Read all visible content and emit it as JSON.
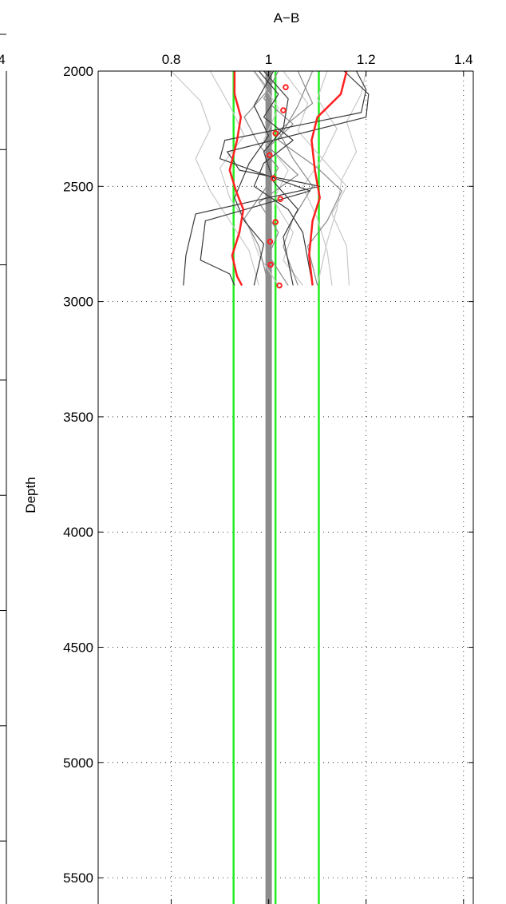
{
  "chart_data": {
    "type": "line",
    "title": "A−B",
    "xlabel": "",
    "ylabel": "Depth",
    "xlim": [
      0.65,
      1.42
    ],
    "ylim": [
      2000,
      5600
    ],
    "y_reversed": true,
    "x_axis_position": "top",
    "grid": true,
    "grid_style": "dotted",
    "x_ticks": [
      0.8,
      1,
      1.2,
      1.4
    ],
    "x_tick_labels": [
      "0.8",
      "1",
      "1.2",
      "1.4"
    ],
    "y_ticks": [
      2000,
      2500,
      3000,
      3500,
      4000,
      4500,
      5000,
      5500
    ],
    "y_tick_labels": [
      "2000",
      "2500",
      "3000",
      "3500",
      "4000",
      "4500",
      "5000",
      "5500"
    ],
    "left_partial_panel_label": "4",
    "colors": {
      "red": "#ff2020",
      "green": "#22ee22",
      "gray_reference": "#8c8c8c",
      "dark_lines": "#3a3a3a",
      "mid_lines": "#8a8a8a",
      "light_lines": "#c8c8c8",
      "marker": "#ee0000"
    },
    "vertical_lines": [
      {
        "x": 0.928,
        "color": "green"
      },
      {
        "x": 1.014,
        "color": "green"
      },
      {
        "x": 1.103,
        "color": "green"
      },
      {
        "x": 1.0,
        "color": "gray_reference",
        "thick": true
      }
    ],
    "markers": {
      "color": "red",
      "points": [
        {
          "x": 1.035,
          "y": 2070
        },
        {
          "x": 1.03,
          "y": 2170
        },
        {
          "x": 1.014,
          "y": 2270
        },
        {
          "x": 1.002,
          "y": 2365
        },
        {
          "x": 1.01,
          "y": 2465
        },
        {
          "x": 1.024,
          "y": 2555
        },
        {
          "x": 1.014,
          "y": 2655
        },
        {
          "x": 1.003,
          "y": 2740
        },
        {
          "x": 1.004,
          "y": 2840
        },
        {
          "x": 1.022,
          "y": 2930
        }
      ]
    },
    "series": [
      {
        "color": "red",
        "width": 2.5,
        "points": [
          [
            0.93,
            2000
          ],
          [
            0.93,
            2100
          ],
          [
            0.943,
            2200
          ],
          [
            0.935,
            2300
          ],
          [
            0.92,
            2430
          ],
          [
            0.933,
            2520
          ],
          [
            0.948,
            2600
          ],
          [
            0.94,
            2700
          ],
          [
            0.925,
            2800
          ],
          [
            0.935,
            2890
          ],
          [
            0.945,
            2930
          ]
        ]
      },
      {
        "color": "red",
        "width": 2.5,
        "points": [
          [
            1.16,
            2000
          ],
          [
            1.148,
            2100
          ],
          [
            1.1,
            2200
          ],
          [
            1.088,
            2300
          ],
          [
            1.095,
            2430
          ],
          [
            1.105,
            2550
          ],
          [
            1.09,
            2650
          ],
          [
            1.083,
            2800
          ],
          [
            1.09,
            2930
          ]
        ]
      },
      {
        "color": "dark_lines",
        "width": 1.2,
        "points": [
          [
            1.155,
            2000
          ],
          [
            1.205,
            2100
          ],
          [
            1.2,
            2200
          ],
          [
            0.915,
            2350
          ],
          [
            0.94,
            2430
          ],
          [
            1.105,
            2500
          ],
          [
            0.85,
            2620
          ],
          [
            0.83,
            2800
          ],
          [
            0.825,
            2930
          ]
        ]
      },
      {
        "color": "dark_lines",
        "width": 1.2,
        "points": [
          [
            1.18,
            2000
          ],
          [
            1.2,
            2080
          ],
          [
            1.19,
            2180
          ],
          [
            0.91,
            2300
          ],
          [
            0.9,
            2380
          ],
          [
            1.085,
            2520
          ],
          [
            0.87,
            2650
          ],
          [
            0.86,
            2820
          ],
          [
            0.92,
            2880
          ],
          [
            0.93,
            2930
          ]
        ]
      },
      {
        "color": "dark_lines",
        "width": 1.2,
        "points": [
          [
            0.98,
            2000
          ],
          [
            1.02,
            2100
          ],
          [
            0.99,
            2200
          ],
          [
            1.05,
            2300
          ],
          [
            0.99,
            2400
          ],
          [
            0.97,
            2500
          ],
          [
            1.04,
            2600
          ],
          [
            1.07,
            2700
          ],
          [
            1.09,
            2930
          ]
        ]
      },
      {
        "color": "dark_lines",
        "width": 1.2,
        "points": [
          [
            1.01,
            2000
          ],
          [
            0.97,
            2150
          ],
          [
            1.0,
            2280
          ],
          [
            0.96,
            2400
          ],
          [
            0.93,
            2550
          ],
          [
            0.95,
            2650
          ],
          [
            0.99,
            2750
          ],
          [
            0.97,
            2930
          ]
        ]
      },
      {
        "color": "dark_lines",
        "width": 1.2,
        "points": [
          [
            0.99,
            2000
          ],
          [
            1.04,
            2120
          ],
          [
            1.03,
            2250
          ],
          [
            0.99,
            2350
          ],
          [
            1.01,
            2480
          ],
          [
            1.06,
            2600
          ],
          [
            1.03,
            2720
          ],
          [
            1.05,
            2930
          ]
        ]
      },
      {
        "color": "mid_lines",
        "width": 1.2,
        "points": [
          [
            1.02,
            2000
          ],
          [
            0.99,
            2120
          ],
          [
            1.05,
            2230
          ],
          [
            1.0,
            2330
          ],
          [
            1.06,
            2450
          ],
          [
            0.98,
            2570
          ],
          [
            1.02,
            2700
          ],
          [
            1.0,
            2800
          ],
          [
            1.04,
            2930
          ]
        ]
      },
      {
        "color": "mid_lines",
        "width": 1.2,
        "points": [
          [
            1.09,
            2000
          ],
          [
            1.06,
            2150
          ],
          [
            1.02,
            2300
          ],
          [
            1.1,
            2420
          ],
          [
            1.15,
            2520
          ],
          [
            1.12,
            2650
          ],
          [
            1.08,
            2760
          ],
          [
            1.1,
            2930
          ]
        ]
      },
      {
        "color": "mid_lines",
        "width": 1.2,
        "points": [
          [
            0.97,
            2000
          ],
          [
            1.0,
            2080
          ],
          [
            0.95,
            2200
          ],
          [
            0.98,
            2320
          ],
          [
            1.02,
            2420
          ],
          [
            0.99,
            2520
          ],
          [
            0.95,
            2640
          ],
          [
            0.98,
            2760
          ],
          [
            1.0,
            2930
          ]
        ]
      },
      {
        "color": "mid_lines",
        "width": 1.2,
        "points": [
          [
            1.06,
            2000
          ],
          [
            1.09,
            2140
          ],
          [
            1.02,
            2260
          ],
          [
            1.05,
            2380
          ],
          [
            1.09,
            2500
          ],
          [
            1.05,
            2640
          ],
          [
            1.03,
            2760
          ],
          [
            1.06,
            2930
          ]
        ]
      },
      {
        "color": "light_lines",
        "width": 1.2,
        "points": [
          [
            0.88,
            2000
          ],
          [
            0.92,
            2150
          ],
          [
            0.95,
            2280
          ],
          [
            0.9,
            2420
          ],
          [
            0.92,
            2550
          ],
          [
            0.96,
            2680
          ],
          [
            0.98,
            2800
          ],
          [
            1.02,
            2930
          ]
        ]
      },
      {
        "color": "light_lines",
        "width": 1.2,
        "points": [
          [
            0.8,
            2000
          ],
          [
            0.86,
            2130
          ],
          [
            0.88,
            2250
          ],
          [
            0.85,
            2380
          ],
          [
            0.88,
            2520
          ],
          [
            0.92,
            2650
          ],
          [
            0.96,
            2780
          ],
          [
            0.98,
            2930
          ]
        ]
      },
      {
        "color": "light_lines",
        "width": 1.2,
        "points": [
          [
            1.12,
            2000
          ],
          [
            1.1,
            2120
          ],
          [
            1.14,
            2250
          ],
          [
            1.11,
            2380
          ],
          [
            1.16,
            2500
          ],
          [
            1.13,
            2620
          ],
          [
            1.16,
            2760
          ],
          [
            1.165,
            2930
          ]
        ]
      },
      {
        "color": "light_lines",
        "width": 1.2,
        "points": [
          [
            1.03,
            2000
          ],
          [
            1.08,
            2140
          ],
          [
            1.06,
            2260
          ],
          [
            1.11,
            2380
          ],
          [
            1.07,
            2500
          ],
          [
            1.1,
            2640
          ],
          [
            1.12,
            2780
          ],
          [
            1.13,
            2930
          ]
        ]
      },
      {
        "color": "light_lines",
        "width": 1.2,
        "points": [
          [
            0.97,
            2000
          ],
          [
            1.02,
            2160
          ],
          [
            0.99,
            2300
          ],
          [
            1.04,
            2430
          ],
          [
            1.01,
            2560
          ],
          [
            1.05,
            2700
          ],
          [
            1.03,
            2820
          ],
          [
            1.07,
            2930
          ]
        ]
      },
      {
        "color": "light_lines",
        "width": 1.2,
        "points": [
          [
            1.2,
            2000
          ],
          [
            1.19,
            2100
          ],
          [
            1.16,
            2220
          ],
          [
            1.18,
            2350
          ],
          [
            1.15,
            2470
          ],
          [
            1.14,
            2600
          ],
          [
            1.12,
            2740
          ],
          [
            1.1,
            2930
          ]
        ]
      }
    ]
  }
}
